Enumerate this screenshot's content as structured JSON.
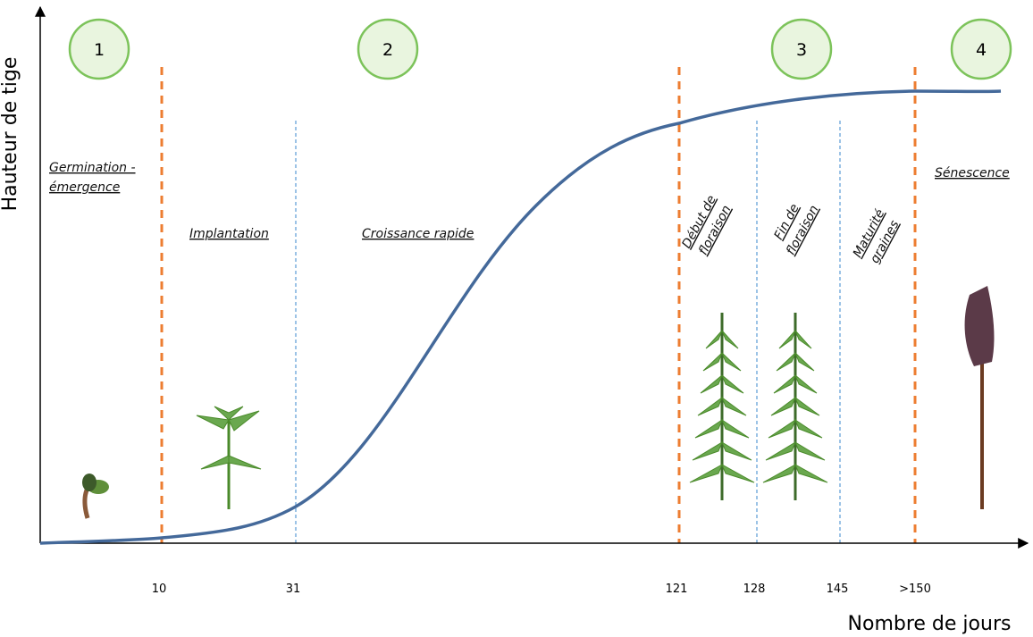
{
  "axes": {
    "y_label": "Hauteur de tige",
    "x_label": "Nombre de jours"
  },
  "stages": [
    "1",
    "2",
    "3",
    "4"
  ],
  "ticks": [
    "10",
    "31",
    "121",
    "128",
    "145",
    ">150"
  ],
  "phases": [
    {
      "lines": [
        "Germination  -",
        "émergence"
      ]
    },
    {
      "lines": [
        "Implantation"
      ]
    },
    {
      "lines": [
        "Croissance rapide"
      ]
    },
    {
      "lines": [
        "Début de",
        "floraison"
      ]
    },
    {
      "lines": [
        "Fin de",
        "floraison"
      ]
    },
    {
      "lines": [
        "Maturité",
        "graines"
      ]
    },
    {
      "lines": [
        "Sénescence"
      ]
    }
  ]
}
